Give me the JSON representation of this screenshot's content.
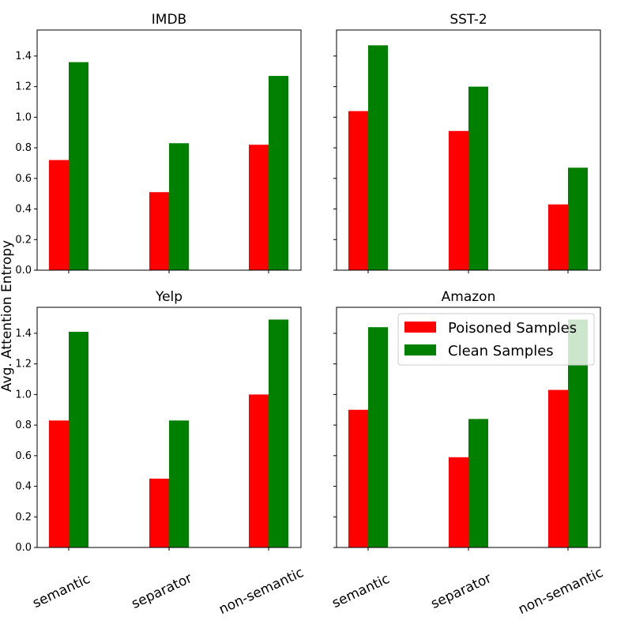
{
  "chart_data": {
    "type": "bar",
    "ylabel": "Avg. Attention Entropy",
    "ylim": [
      0,
      1.57
    ],
    "yticks": [
      "0.0",
      "0.2",
      "0.4",
      "0.6",
      "0.8",
      "1.0",
      "1.2",
      "1.4"
    ],
    "categories": [
      "semantic",
      "separator",
      "non-semantic"
    ],
    "legend": {
      "placement": "top-right of Amazon panel",
      "entries": [
        "Poisoned Samples",
        "Clean Samples"
      ]
    },
    "colors": {
      "poisoned": "#ff0000",
      "clean": "#008000"
    },
    "panels": [
      {
        "title": "IMDB",
        "series": [
          {
            "name": "Poisoned Samples",
            "values": [
              0.72,
              0.51,
              0.82
            ]
          },
          {
            "name": "Clean Samples",
            "values": [
              1.36,
              0.83,
              1.27
            ]
          }
        ]
      },
      {
        "title": "SST-2",
        "series": [
          {
            "name": "Poisoned Samples",
            "values": [
              1.04,
              0.91,
              0.43
            ]
          },
          {
            "name": "Clean Samples",
            "values": [
              1.47,
              1.2,
              0.67
            ]
          }
        ]
      },
      {
        "title": "Yelp",
        "series": [
          {
            "name": "Poisoned Samples",
            "values": [
              0.83,
              0.45,
              1.0
            ]
          },
          {
            "name": "Clean Samples",
            "values": [
              1.41,
              0.83,
              1.49
            ]
          }
        ]
      },
      {
        "title": "Amazon",
        "series": [
          {
            "name": "Poisoned Samples",
            "values": [
              0.9,
              0.59,
              1.03
            ]
          },
          {
            "name": "Clean Samples",
            "values": [
              1.44,
              0.84,
              1.49
            ]
          }
        ]
      }
    ]
  }
}
